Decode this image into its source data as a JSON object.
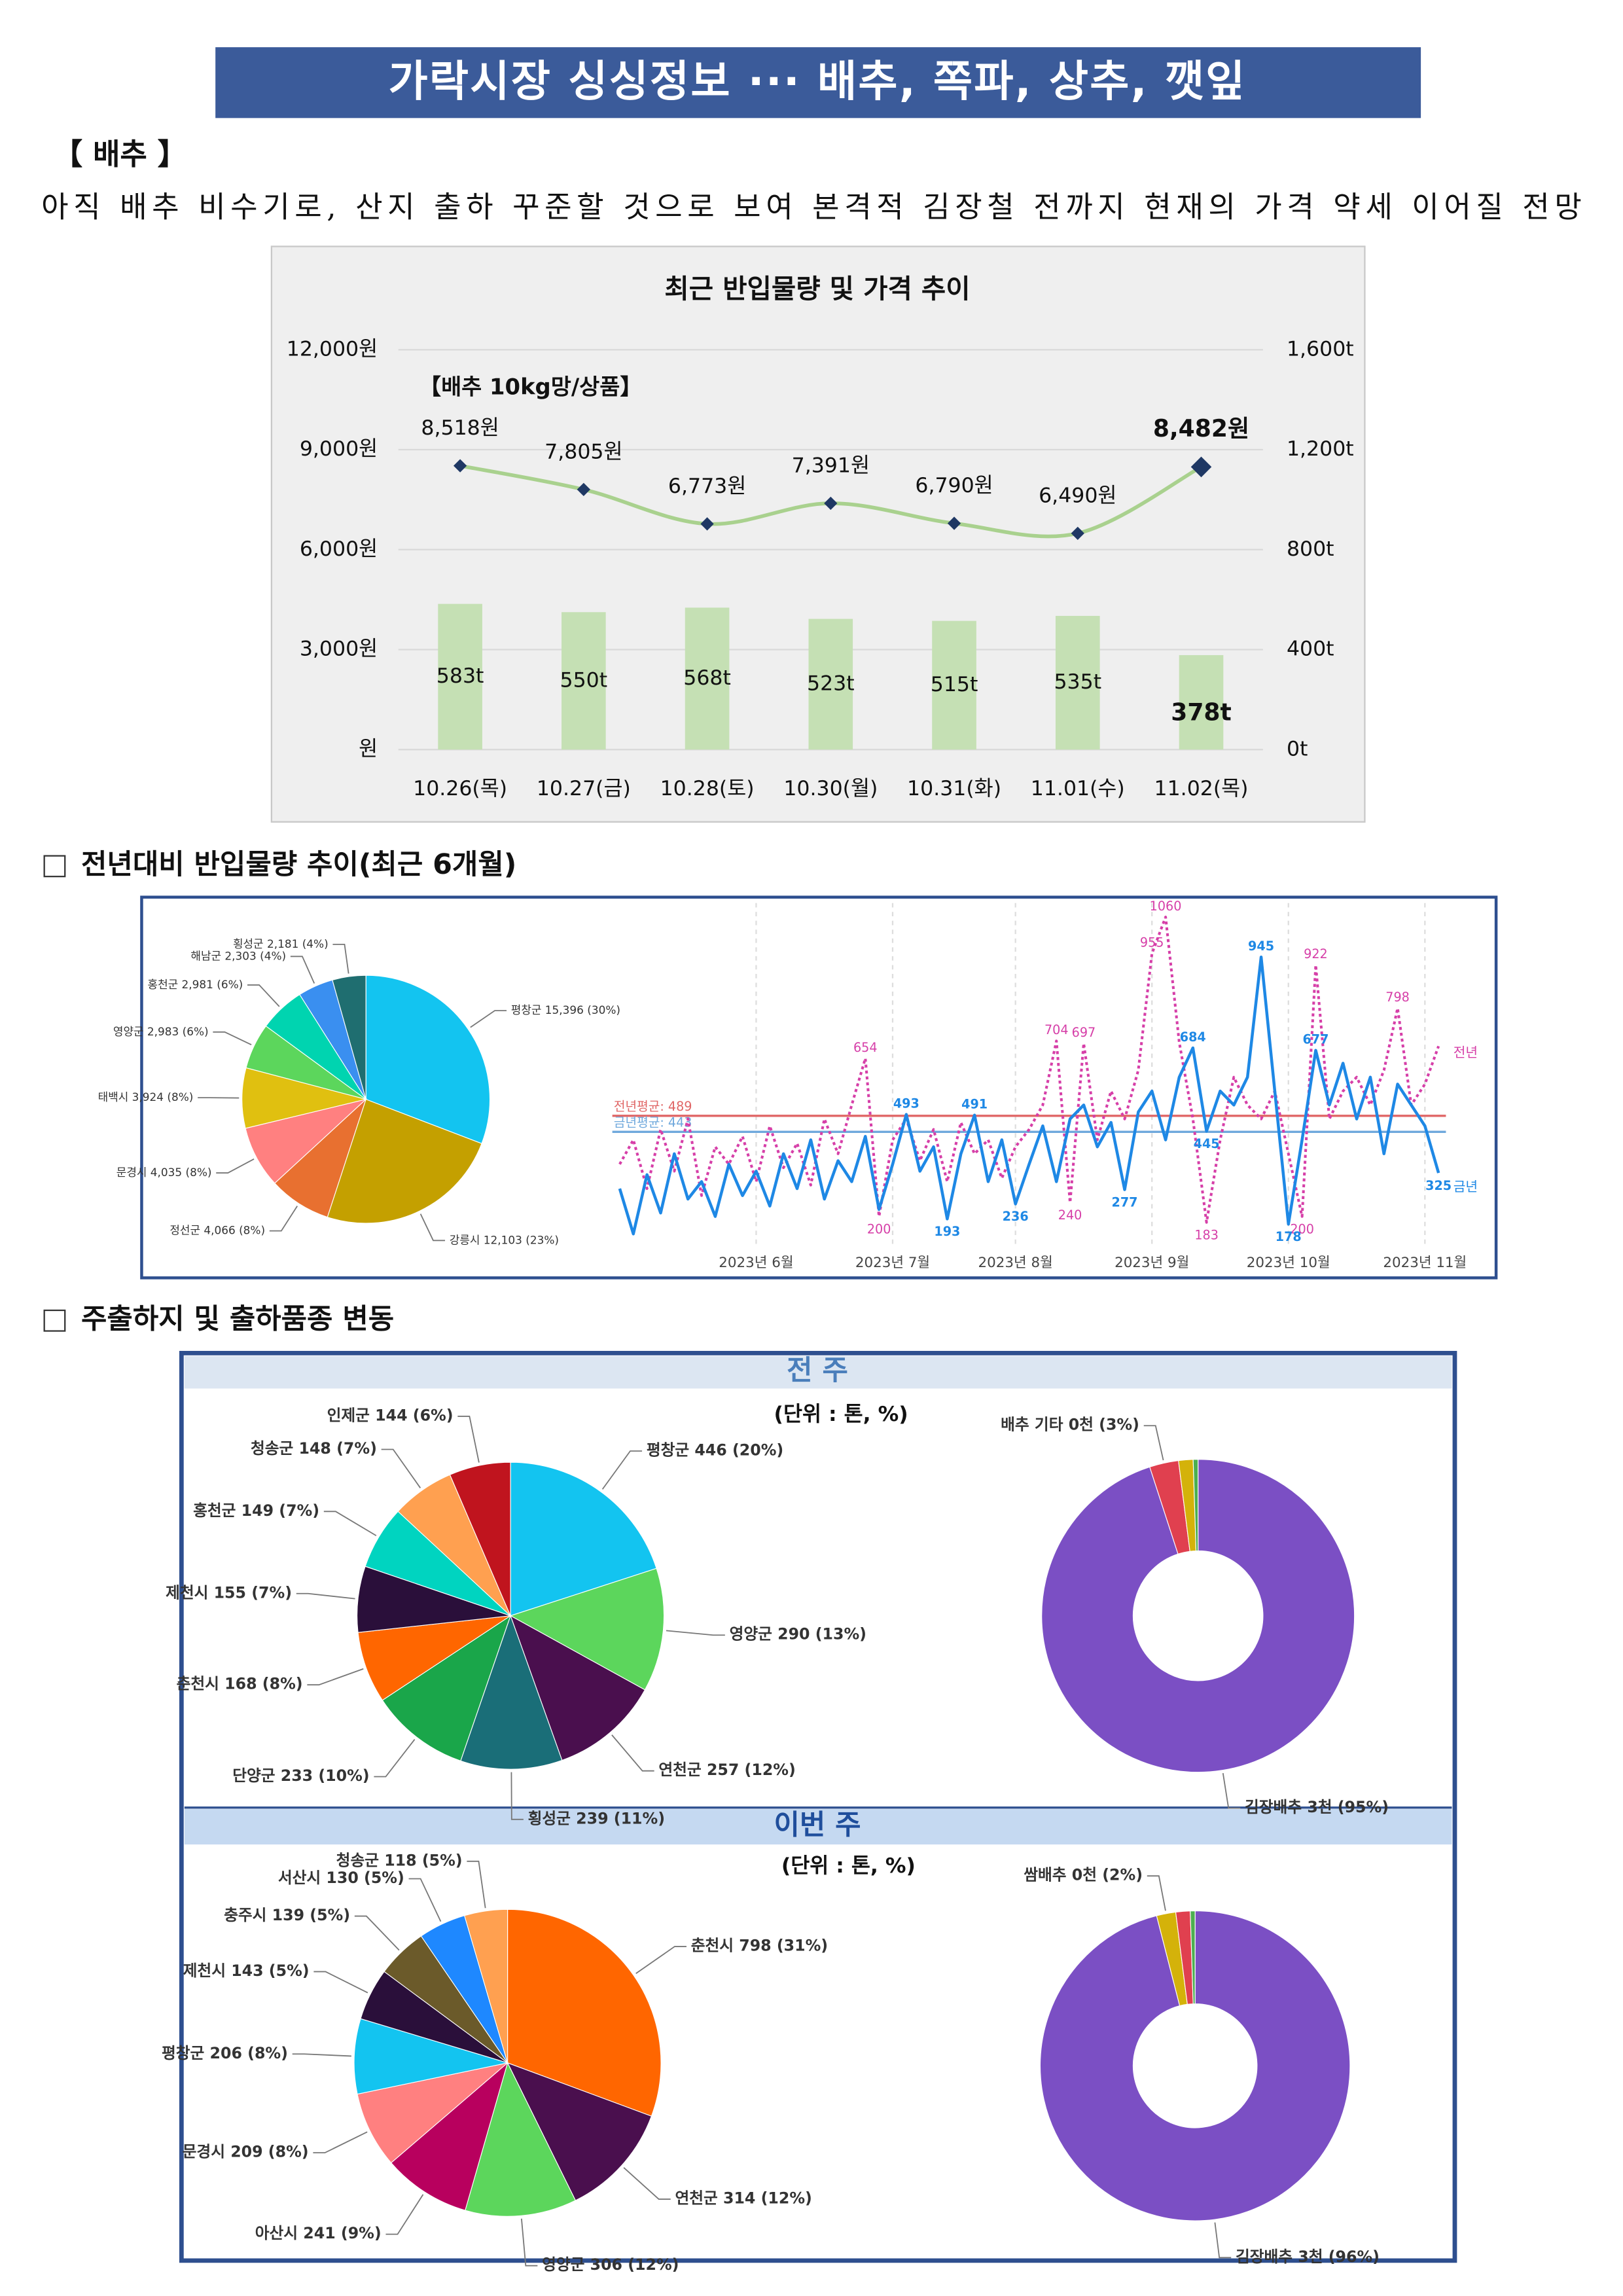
{
  "header": {
    "title": "가락시장 싱싱정보 ··· 배추, 쪽파, 상추, 깻잎"
  },
  "section": {
    "heading": "【 배추 】",
    "summary": "아직 배추 비수기로, 산지 출하 꾸준할 것으로 보여 본격적 김장철 전까지 현재의 가격 약세 이어질 전망"
  },
  "subsections": [
    "전년대비 반입물량 추이(최근 6개월)",
    "주출하지 및 출하품종 변동"
  ],
  "panels": [
    "전 주",
    "이번 주"
  ],
  "chart_data": [
    {
      "type": "combo",
      "title": "최근 반입물량 및 가격 추이",
      "annotation": "【배추 10kg망/상품】",
      "categories": [
        "10.26(목)",
        "10.27(금)",
        "10.28(토)",
        "10.30(월)",
        "10.31(화)",
        "11.01(수)",
        "11.02(목)"
      ],
      "series": [
        {
          "type": "bar",
          "axis": "y2",
          "color": "#c5e0b4",
          "values": [
            583,
            550,
            568,
            523,
            515,
            535,
            378
          ],
          "value_labels": [
            "583t",
            "550t",
            "568t",
            "523t",
            "515t",
            "535t",
            "378t"
          ]
        },
        {
          "type": "line",
          "color": "#a9d18e",
          "marker_color": "#1f3864",
          "values": [
            8518,
            7805,
            6773,
            7391,
            6790,
            6490,
            8482
          ],
          "value_labels": [
            "8,518원",
            "7,805원",
            "6,773원",
            "7,391원",
            "6,790원",
            "6,490원",
            "8,482원"
          ]
        }
      ],
      "ylim": [
        0,
        12000
      ],
      "yticks": [
        {
          "value": 0,
          "label": "원"
        },
        {
          "value": 3000,
          "label": "3,000원"
        },
        {
          "value": 6000,
          "label": "6,000원"
        },
        {
          "value": 9000,
          "label": "9,000원"
        },
        {
          "value": 12000,
          "label": "12,000원"
        }
      ],
      "y2lim": [
        0,
        1600
      ],
      "y2ticks": [
        {
          "value": 0,
          "label": "0t"
        },
        {
          "value": 400,
          "label": "400t"
        },
        {
          "value": 800,
          "label": "800t"
        },
        {
          "value": 1200,
          "label": "1,200t"
        },
        {
          "value": 1600,
          "label": "1,600t"
        }
      ],
      "grid": true
    },
    {
      "type": "pie",
      "values": [
        15396,
        12103,
        4066,
        4035,
        3924,
        2983,
        2981,
        2303,
        2181
      ],
      "value_labels": [
        "평창군 15,396 (30%)",
        "강릉시 12,103 (23%)",
        "정선군 4,066 (8%)",
        "문경시 4,035 (8%)",
        "태백시 3,924 (8%)",
        "영양군 2,983 (6%)",
        "홍천군 2,981 (6%)",
        "해남군 2,303 (4%)",
        "횡성군 2,181 (4%)"
      ],
      "colors": [
        "#13c4f0",
        "#c4a000",
        "#e87030",
        "#ff8080",
        "#e0c010",
        "#5cd65c",
        "#00d4b0",
        "#3a8ff0",
        "#1f6e70"
      ]
    },
    {
      "type": "line",
      "categories": [
        null,
        null,
        null,
        null,
        null,
        null,
        null,
        null,
        null,
        null,
        "2023년 6월",
        null,
        null,
        null,
        null,
        null,
        null,
        null,
        null,
        null,
        "2023년 7월",
        null,
        null,
        null,
        null,
        null,
        null,
        null,
        null,
        "2023년 8월",
        null,
        null,
        null,
        null,
        null,
        null,
        null,
        null,
        null,
        "2023년 9월",
        null,
        null,
        null,
        null,
        null,
        null,
        null,
        null,
        null,
        "2023년 10월",
        null,
        null,
        null,
        null,
        null,
        null,
        null,
        null,
        null,
        "2023년 11월",
        null
      ],
      "series": [
        {
          "name": "전년",
          "color": "#d63fa8",
          "dashed": true,
          "values": [
            350,
            420,
            280,
            450,
            330,
            480,
            260,
            400,
            350,
            430,
            300,
            460,
            340,
            410,
            290,
            480,
            380,
            520,
            654,
            200,
            420,
            480,
            360,
            450,
            300,
            470,
            380,
            420,
            310,
            400,
            450,
            520,
            704,
            240,
            697,
            420,
            560,
            480,
            620,
            955,
            1060,
            700,
            480,
            183,
            420,
            600,
            520,
            480,
            560,
            380,
            200,
            922,
            480,
            560,
            600,
            520,
            620,
            798,
            520,
            580,
            689
          ],
          "value_labels": [
            null,
            null,
            null,
            null,
            null,
            null,
            null,
            null,
            null,
            null,
            null,
            null,
            null,
            null,
            null,
            null,
            null,
            null,
            "654",
            "200",
            null,
            null,
            null,
            null,
            null,
            null,
            null,
            null,
            null,
            null,
            null,
            null,
            "704",
            "240",
            "697",
            null,
            null,
            null,
            null,
            "955",
            "1060",
            null,
            null,
            "183",
            null,
            null,
            null,
            null,
            null,
            null,
            "200",
            "922",
            null,
            null,
            null,
            null,
            null,
            "798",
            null,
            null,
            null
          ]
        },
        {
          "name": "금년",
          "color": "#1e88e5",
          "dashed": false,
          "values": [
            280,
            150,
            320,
            210,
            380,
            250,
            300,
            200,
            350,
            260,
            330,
            230,
            380,
            280,
            420,
            250,
            360,
            300,
            430,
            220,
            350,
            493,
            330,
            400,
            193,
            380,
            491,
            300,
            420,
            236,
            350,
            460,
            300,
            480,
            520,
            400,
            470,
            277,
            500,
            560,
            420,
            600,
            684,
            445,
            560,
            520,
            600,
            945,
            560,
            178,
            420,
            677,
            520,
            640,
            480,
            600,
            380,
            580,
            520,
            460,
            325
          ],
          "value_labels": [
            null,
            null,
            null,
            null,
            null,
            null,
            null,
            null,
            null,
            null,
            null,
            null,
            null,
            null,
            null,
            null,
            null,
            null,
            null,
            null,
            null,
            "493",
            null,
            null,
            "193",
            null,
            "491",
            null,
            null,
            "236",
            null,
            null,
            null,
            null,
            null,
            null,
            null,
            "277",
            null,
            null,
            null,
            null,
            "684",
            "445",
            null,
            null,
            null,
            "945",
            null,
            "178",
            null,
            "677",
            null,
            null,
            null,
            null,
            null,
            null,
            null,
            null,
            "325"
          ]
        }
      ],
      "reference_lines": [
        {
          "label": "전년평균: 489",
          "value": 489,
          "color": "#e06666"
        },
        {
          "label": "금년평균: 443",
          "value": 443,
          "color": "#6fa8dc"
        }
      ],
      "ylim": [
        100,
        1100
      ]
    },
    {
      "type": "pie",
      "subtitle": "(단위 : 톤, %)",
      "values": [
        446,
        290,
        257,
        239,
        233,
        168,
        155,
        149,
        148,
        144
      ],
      "value_labels": [
        "평창군 446 (20%)",
        "영양군 290 (13%)",
        "연천군 257 (12%)",
        "횡성군 239 (11%)",
        "단양군 233 (10%)",
        "춘천시 168 (8%)",
        "제천시 155 (7%)",
        "홍천군 149 (7%)",
        "청송군 148 (7%)",
        "인제군 144 (6%)"
      ],
      "colors": [
        "#13c4f0",
        "#5cd65c",
        "#4a0f4e",
        "#1a6e78",
        "#1aa64a",
        "#ff6600",
        "#2a0f3a",
        "#00d4c0",
        "#ffa050",
        "#c0141e"
      ]
    },
    {
      "type": "donut",
      "values": [
        95,
        3,
        1.5,
        0.5
      ],
      "value_labels": [
        "김장배추 3천 (95%)",
        "배추 기타 0천 (3%)",
        null,
        null
      ],
      "colors": [
        "#7b4fc4",
        "#e0404f",
        "#d4b20a",
        "#4caf50"
      ]
    },
    {
      "type": "pie",
      "subtitle": "(단위 : 톤, %)",
      "values": [
        798,
        314,
        306,
        241,
        209,
        206,
        143,
        139,
        130,
        118
      ],
      "value_labels": [
        "춘천시 798 (31%)",
        "연천군 314 (12%)",
        "영양군 306 (12%)",
        "아산시 241 (9%)",
        "문경시 209 (8%)",
        "평창군 206 (8%)",
        "제천시 143 (5%)",
        "충주시 139 (5%)",
        "서산시 130 (5%)",
        "청송군 118 (5%)"
      ],
      "colors": [
        "#ff6600",
        "#4a0f4e",
        "#5cd65c",
        "#b8005e",
        "#ff8080",
        "#13c4f0",
        "#2a0f3a",
        "#6b5a2a",
        "#1e88ff",
        "#ffa050"
      ]
    },
    {
      "type": "donut",
      "values": [
        96,
        2,
        1.5,
        0.5
      ],
      "value_labels": [
        "김장배추 3천 (96%)",
        "쌈배추 0천 (2%)",
        null,
        null
      ],
      "colors": [
        "#7b4fc4",
        "#d4b20a",
        "#e0404f",
        "#4caf50"
      ]
    }
  ]
}
